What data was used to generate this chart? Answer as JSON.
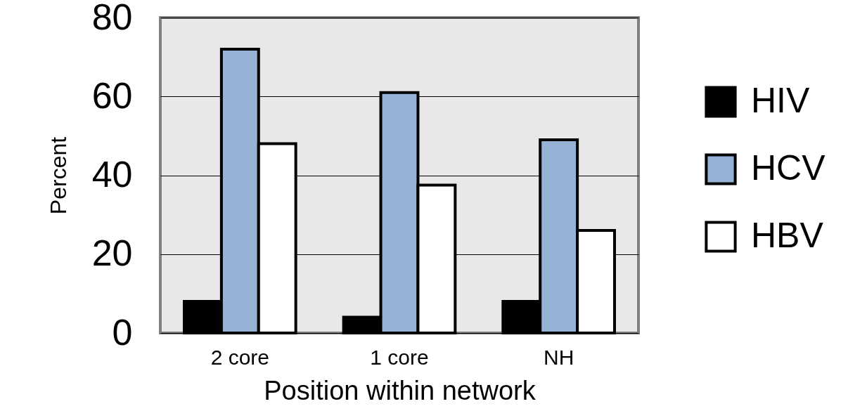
{
  "chart_data": {
    "type": "bar",
    "xlabel": "Position within network",
    "ylabel": "Percent",
    "categories": [
      "2 core",
      "1 core",
      "NH"
    ],
    "series": [
      {
        "name": "HIV",
        "color": "#000000",
        "values": [
          8,
          4,
          8
        ]
      },
      {
        "name": "HCV",
        "color": "#95b3d7",
        "values": [
          72,
          61,
          49
        ]
      },
      {
        "name": "HBV",
        "color": "#ffffff",
        "values": [
          48,
          37.5,
          26
        ]
      }
    ],
    "ylim": [
      0,
      80
    ],
    "yticks": [
      0,
      20,
      40,
      60,
      80
    ],
    "grid": "y",
    "legend": "right"
  }
}
